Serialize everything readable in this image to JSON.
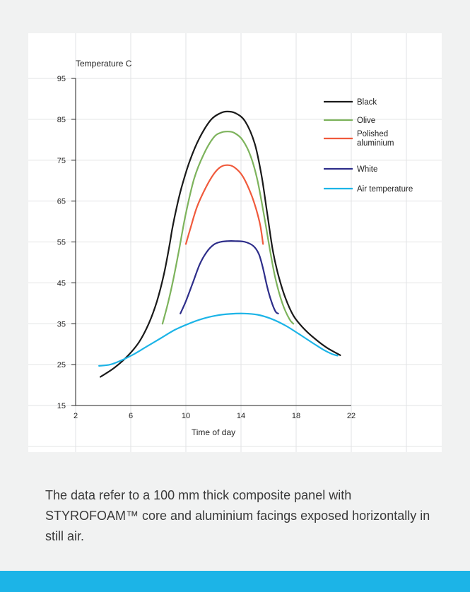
{
  "chart_data": {
    "type": "line",
    "ylabel": "Temperature C",
    "xlabel": "Time of day",
    "xlim": [
      2,
      22
    ],
    "ylim": [
      15,
      95
    ],
    "x_ticks": [
      2,
      6,
      10,
      14,
      18,
      22
    ],
    "y_ticks": [
      15,
      25,
      35,
      45,
      55,
      65,
      75,
      85,
      95
    ],
    "grid": true,
    "legend_position": "top-right",
    "series": [
      {
        "name": "Black",
        "color": "#1a1a1a",
        "points": [
          [
            3.8,
            22
          ],
          [
            4.8,
            24.2
          ],
          [
            5.8,
            27.2
          ],
          [
            6.6,
            30.5
          ],
          [
            7.3,
            35
          ],
          [
            7.9,
            40.5
          ],
          [
            8.4,
            47
          ],
          [
            8.8,
            54
          ],
          [
            9.0,
            58
          ],
          [
            9.3,
            63
          ],
          [
            9.7,
            68.5
          ],
          [
            10.3,
            75
          ],
          [
            11.0,
            80.5
          ],
          [
            11.8,
            84.8
          ],
          [
            12.5,
            86.5
          ],
          [
            13.0,
            86.9
          ],
          [
            13.6,
            86.5
          ],
          [
            14.3,
            84.5
          ],
          [
            15.0,
            79
          ],
          [
            15.5,
            71
          ],
          [
            15.9,
            62
          ],
          [
            16.3,
            53
          ],
          [
            16.7,
            47
          ],
          [
            17.2,
            41.5
          ],
          [
            17.8,
            37
          ],
          [
            18.5,
            34
          ],
          [
            19.3,
            31.5
          ],
          [
            20.2,
            29.2
          ],
          [
            21.2,
            27.3
          ]
        ]
      },
      {
        "name": "Olive",
        "color": "#7db35c",
        "points": [
          [
            8.3,
            35
          ],
          [
            8.7,
            40
          ],
          [
            9.1,
            46
          ],
          [
            9.5,
            53
          ],
          [
            10.0,
            62
          ],
          [
            10.6,
            70.5
          ],
          [
            11.3,
            76.5
          ],
          [
            12.0,
            80.5
          ],
          [
            12.5,
            81.7
          ],
          [
            13.0,
            82
          ],
          [
            13.5,
            81.7
          ],
          [
            14.1,
            80
          ],
          [
            14.7,
            76
          ],
          [
            15.2,
            70
          ],
          [
            15.7,
            61
          ],
          [
            16.1,
            53
          ],
          [
            16.5,
            46
          ],
          [
            17.0,
            40
          ],
          [
            17.5,
            36.2
          ],
          [
            17.8,
            35
          ]
        ]
      },
      {
        "name": "Polished aluminium",
        "color": "#f05a3c",
        "points": [
          [
            10.0,
            54.5
          ],
          [
            10.3,
            58
          ],
          [
            10.8,
            63.5
          ],
          [
            11.4,
            68
          ],
          [
            12.0,
            71.5
          ],
          [
            12.5,
            73.3
          ],
          [
            13.0,
            73.8
          ],
          [
            13.5,
            73.3
          ],
          [
            14.1,
            71.2
          ],
          [
            14.7,
            67
          ],
          [
            15.1,
            63
          ],
          [
            15.4,
            59
          ],
          [
            15.6,
            54.5
          ]
        ]
      },
      {
        "name": "White",
        "color": "#2e2e8a",
        "points": [
          [
            9.6,
            37.5
          ],
          [
            10.0,
            40.5
          ],
          [
            10.5,
            45
          ],
          [
            11.0,
            49.5
          ],
          [
            11.5,
            52.5
          ],
          [
            12.0,
            54.3
          ],
          [
            12.5,
            55
          ],
          [
            13.0,
            55.2
          ],
          [
            13.6,
            55.2
          ],
          [
            14.3,
            55
          ],
          [
            14.9,
            54
          ],
          [
            15.3,
            52
          ],
          [
            15.6,
            48.5
          ],
          [
            15.9,
            44
          ],
          [
            16.2,
            40.5
          ],
          [
            16.5,
            38
          ],
          [
            16.7,
            37.5
          ]
        ]
      },
      {
        "name": "Air temperature",
        "color": "#1cb4e7",
        "points": [
          [
            3.7,
            24.7
          ],
          [
            4.5,
            25
          ],
          [
            5.3,
            26
          ],
          [
            6.2,
            27.5
          ],
          [
            7.2,
            29.5
          ],
          [
            8.2,
            31.5
          ],
          [
            9.2,
            33.5
          ],
          [
            10.2,
            35
          ],
          [
            11.2,
            36.2
          ],
          [
            12.2,
            37
          ],
          [
            13.2,
            37.4
          ],
          [
            14.2,
            37.5
          ],
          [
            15.2,
            37.2
          ],
          [
            16.2,
            36.2
          ],
          [
            17.2,
            34.6
          ],
          [
            18.2,
            32.5
          ],
          [
            19.2,
            30.3
          ],
          [
            20.0,
            28.6
          ],
          [
            20.6,
            27.6
          ],
          [
            21.0,
            27.2
          ]
        ]
      }
    ]
  },
  "caption": "The data refer to a 100 mm thick composite panel with STYROFOAM™ core and aluminium facings exposed horizontally in still air.",
  "colors": {
    "page_background": "#f1f2f2",
    "chart_background": "#ffffff",
    "grid": "#e2e3e4",
    "accent_band": "#1cb4e7"
  }
}
